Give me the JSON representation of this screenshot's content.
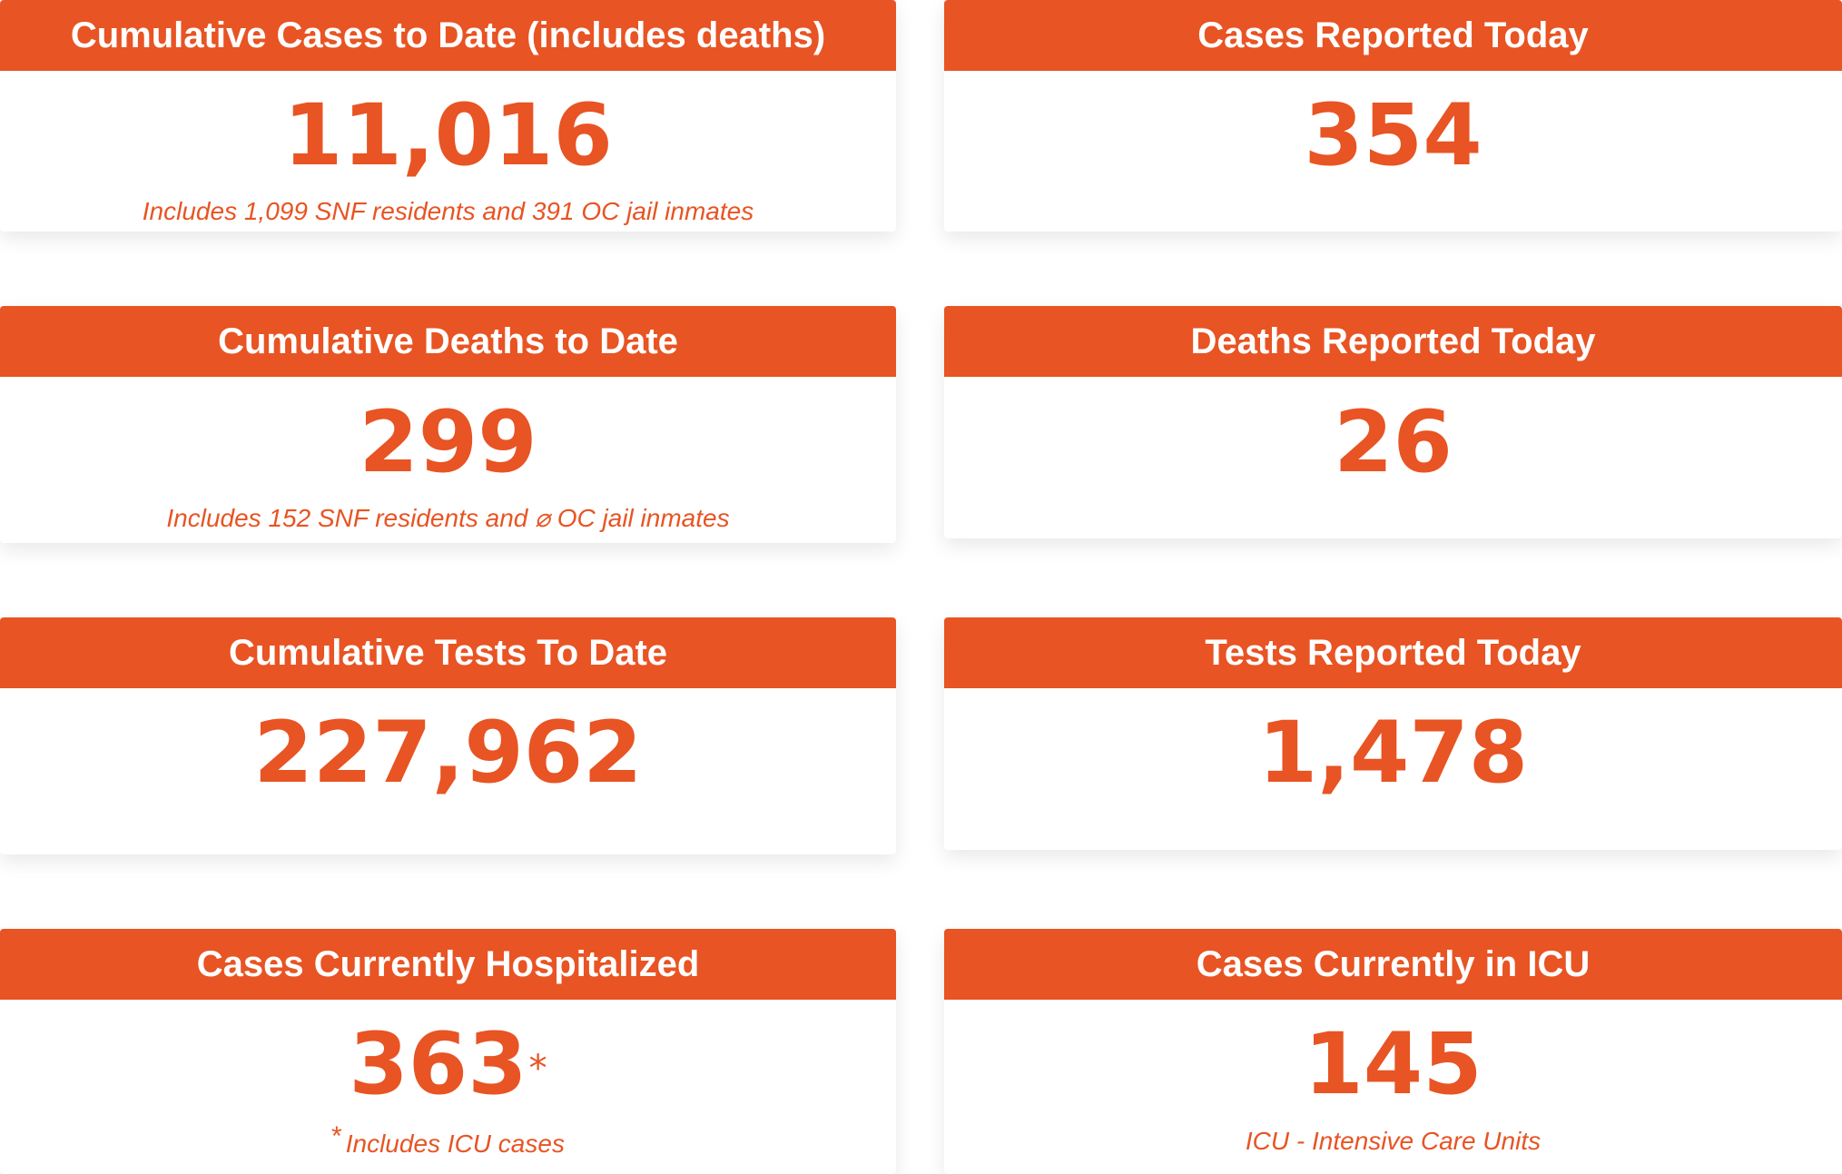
{
  "cards": [
    {
      "title": "Cumulative Cases to Date (includes deaths)",
      "value": "11,016",
      "note": "Includes 1,099 SNF residents and 391 OC jail inmates"
    },
    {
      "title": "Cases Reported Today",
      "value": "354"
    },
    {
      "title": "Cumulative Deaths to Date",
      "value": "299",
      "note": "Includes 152 SNF residents and ⌀ OC jail inmates"
    },
    {
      "title": "Deaths Reported Today",
      "value": "26"
    },
    {
      "title": "Cumulative Tests To Date",
      "value": "227,962"
    },
    {
      "title": "Tests Reported Today",
      "value": "1,478"
    },
    {
      "title": "Cases Currently Hospitalized",
      "value": "363",
      "value_marker": "*",
      "note_marker": "*",
      "note": "Includes ICU cases"
    },
    {
      "title": "Cases Currently in ICU",
      "value": "145",
      "note": "ICU - Intensive Care Units"
    }
  ],
  "colors": {
    "accent": "#e85423",
    "background": "#ffffff",
    "header_text": "#ffffff"
  }
}
